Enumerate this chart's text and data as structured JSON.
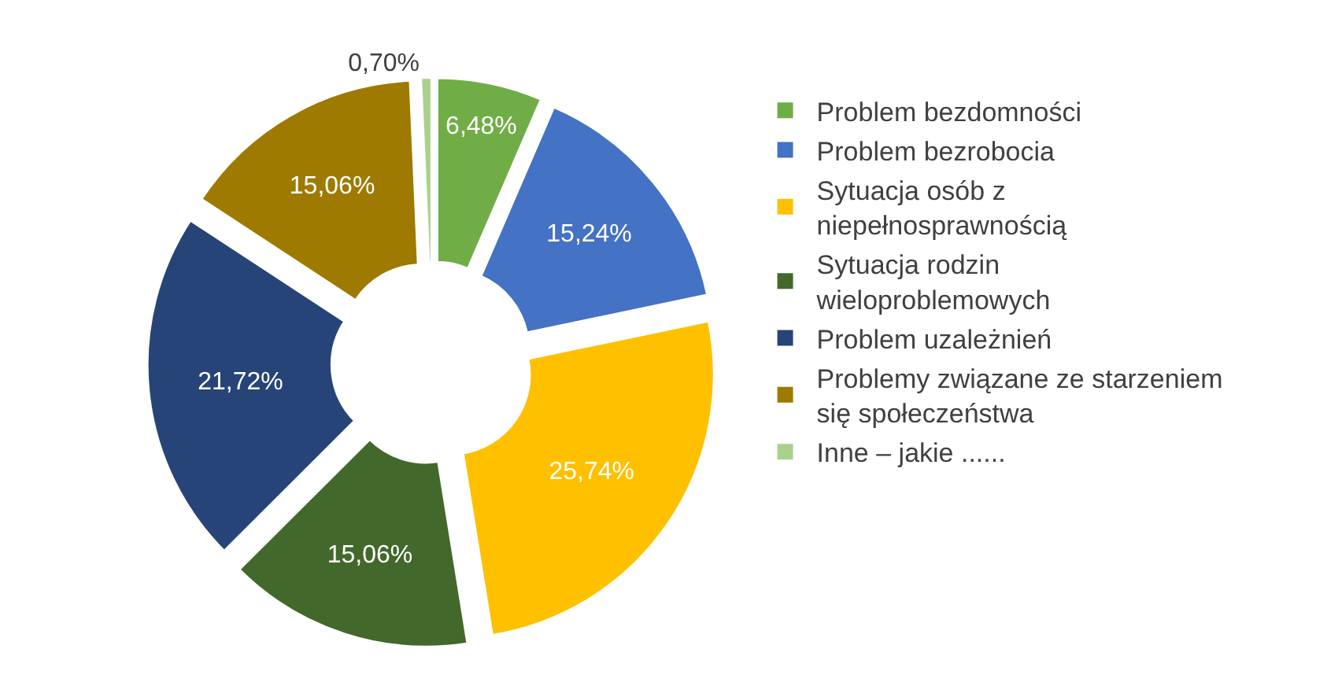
{
  "chart_data": {
    "type": "donut",
    "categories": [
      "Problem bezdomności",
      "Problem bezrobocia",
      "Sytuacja osób z niepełnosprawnością",
      "Sytuacja rodzin wieloproblemowych",
      "Problem uzależnień",
      "Problemy związane ze starzeniem się społeczeństwa",
      "Inne – jakie ......"
    ],
    "values": [
      6.48,
      15.24,
      25.74,
      15.06,
      21.72,
      15.06,
      0.7
    ],
    "value_labels": [
      "6,48%",
      "15,24%",
      "25,74%",
      "15,06%",
      "21,72%",
      "15,06%",
      "0,70%"
    ],
    "colors": [
      "#70ad47",
      "#4472c4",
      "#ffc000",
      "#43682b",
      "#264478",
      "#9e7a00",
      "#a9d18e"
    ],
    "legend": "right"
  }
}
